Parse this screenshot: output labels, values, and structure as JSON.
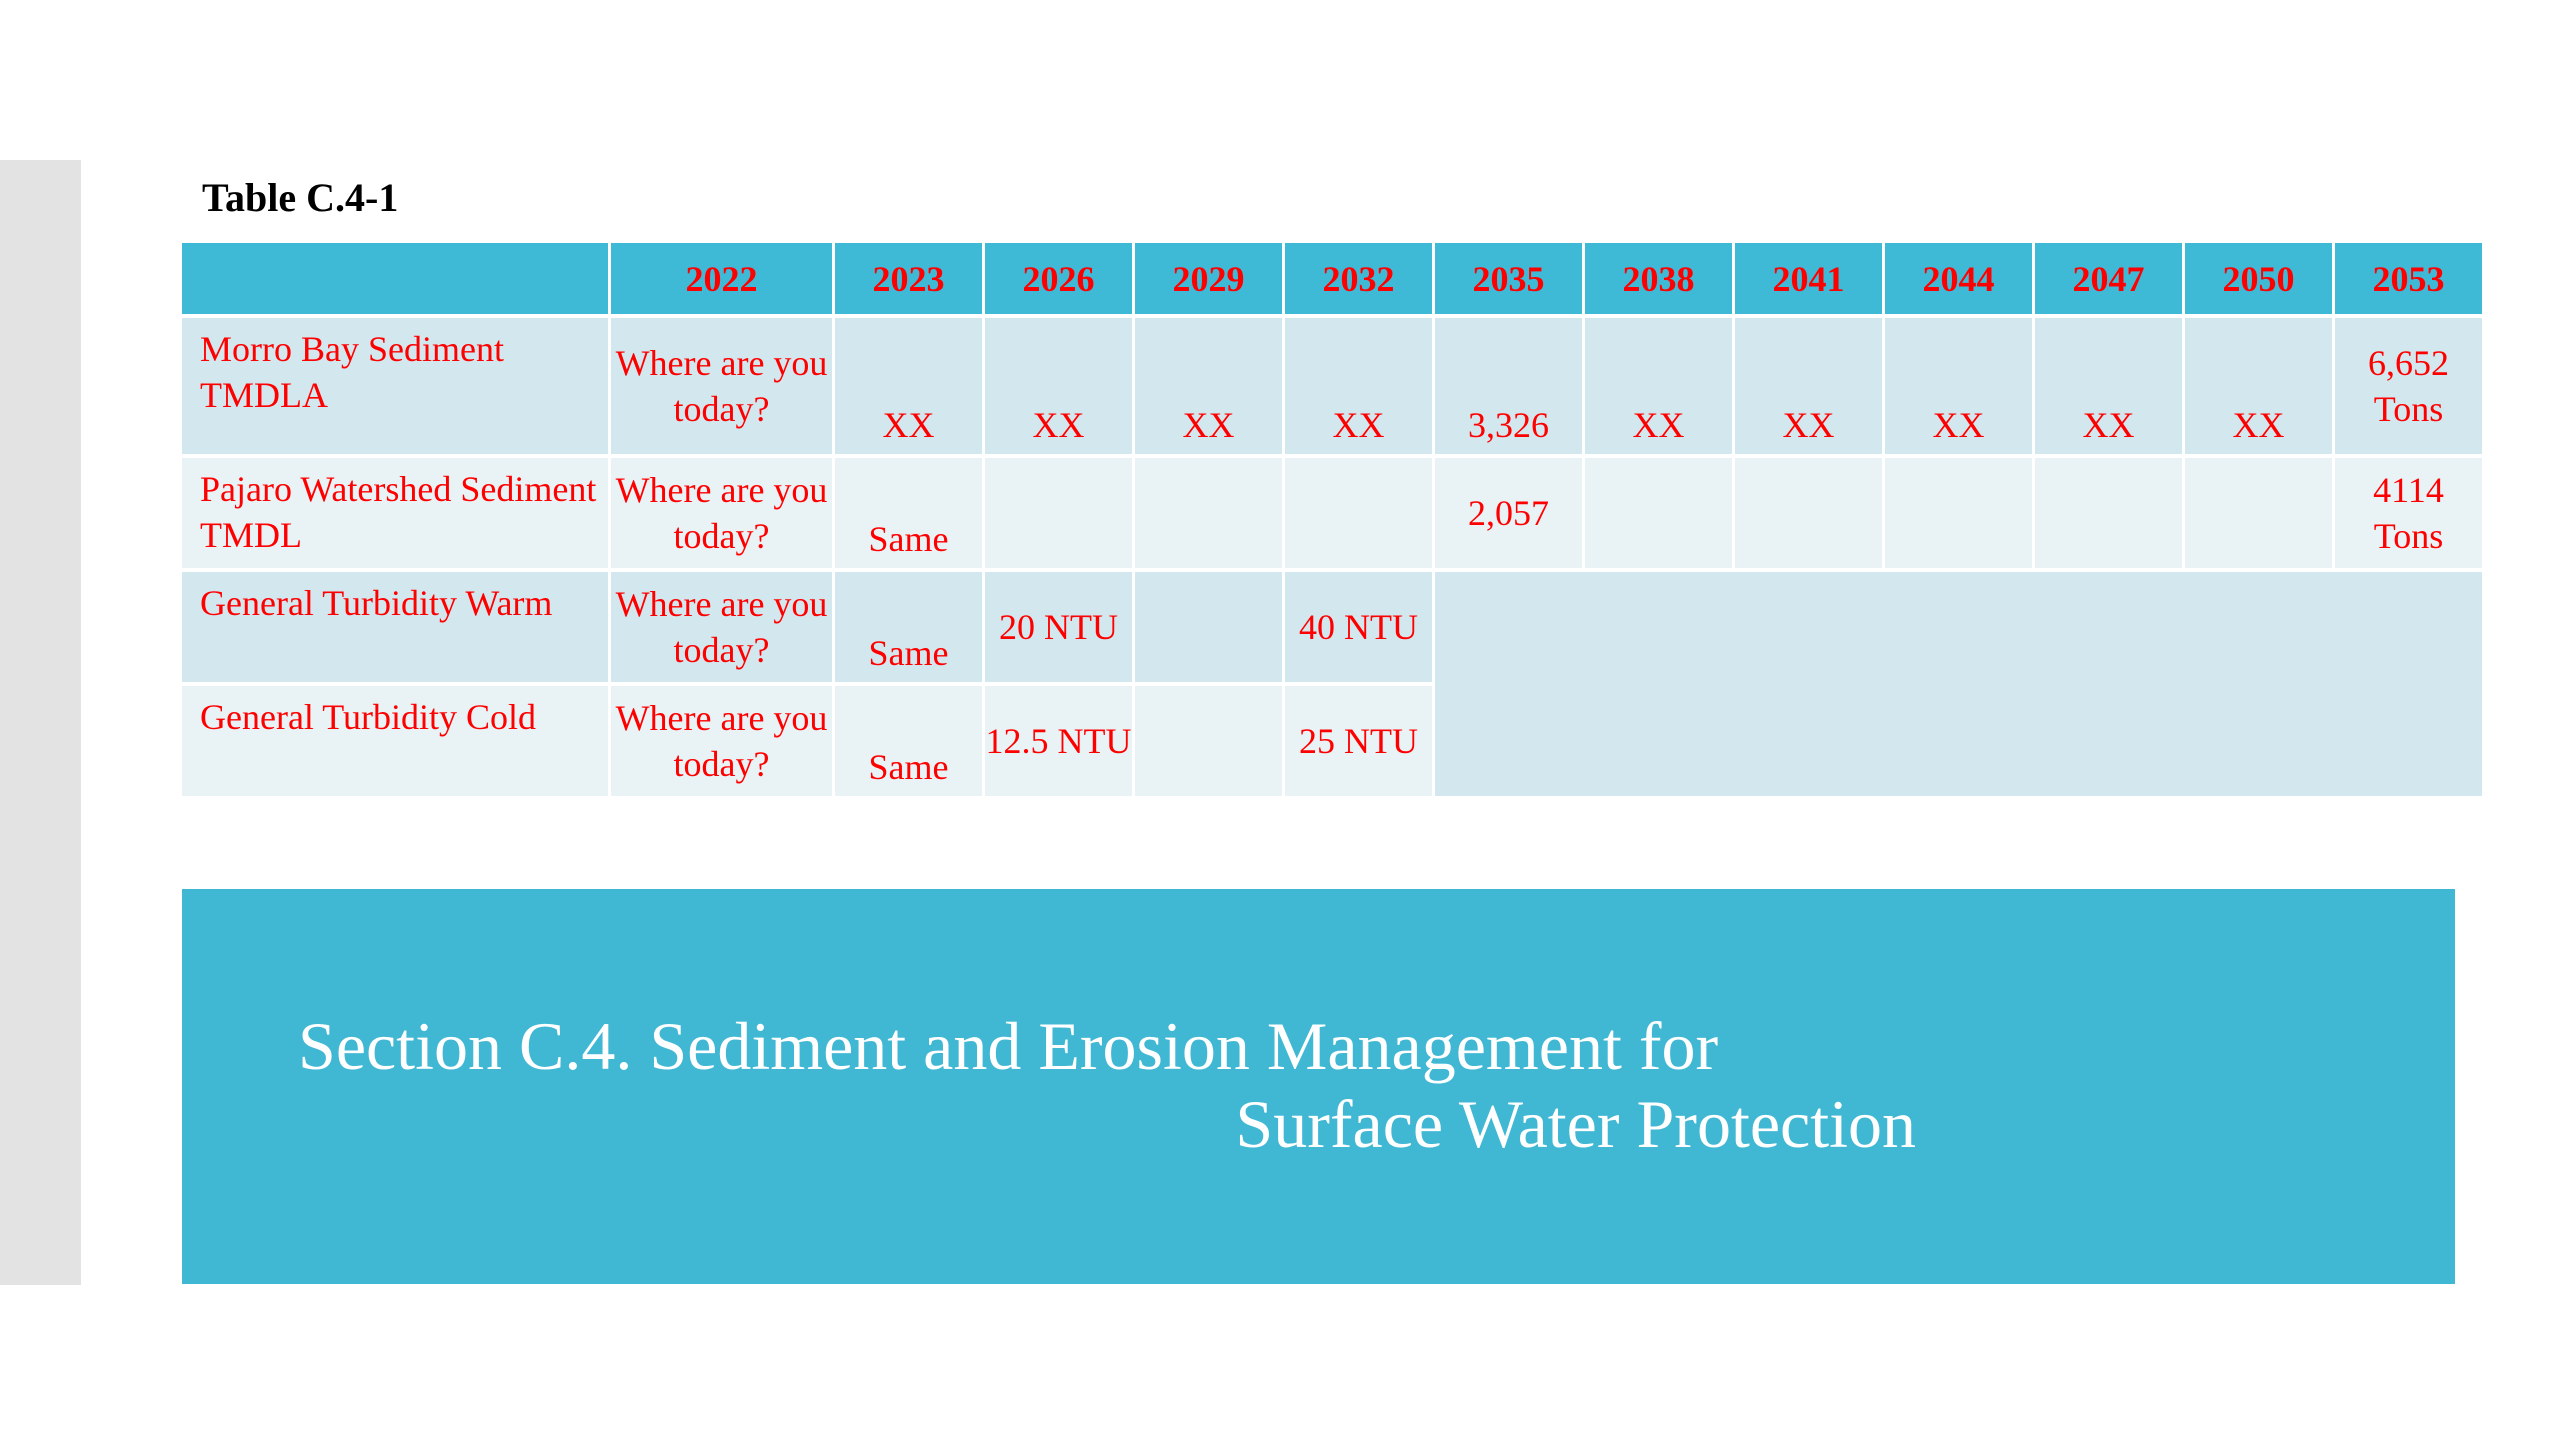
{
  "caption": "Table C.4-1",
  "table": {
    "headers": [
      "",
      "2022",
      "2023",
      "2026",
      "2029",
      "2032",
      "2035",
      "2038",
      "2041",
      "2044",
      "2047",
      "2050",
      "2053"
    ],
    "rows": [
      {
        "label": "Morro Bay Sediment TMDLA",
        "cells": [
          "Where are you today?",
          "XX",
          "XX",
          "XX",
          "XX",
          "3,326",
          "XX",
          "XX",
          "XX",
          "XX",
          "XX",
          "6,652 Tons"
        ]
      },
      {
        "label": "Pajaro Watershed Sediment TMDL",
        "cells": [
          "Where are you today?",
          "Same",
          "",
          "",
          "",
          "2,057",
          "",
          "",
          "",
          "",
          "",
          "4114 Tons"
        ]
      },
      {
        "label": "General Turbidity Warm",
        "cells": [
          "Where are you today?",
          "Same",
          "20 NTU",
          "",
          "40 NTU"
        ]
      },
      {
        "label": "General Turbidity Cold",
        "cells": [
          "Where are you today?",
          "Same",
          "12.5 NTU",
          "",
          "25 NTU"
        ]
      }
    ]
  },
  "section": {
    "line_1": "Section C.4. Sediment and Erosion Management for",
    "line_2": "Surface Water Protection"
  },
  "colors": {
    "header_fill": "#3ebad6",
    "banner_fill": "#41b8d3",
    "text_red": "#ff0000",
    "row_dark": "#d2e8ee",
    "row_light": "#e9f3f6"
  }
}
